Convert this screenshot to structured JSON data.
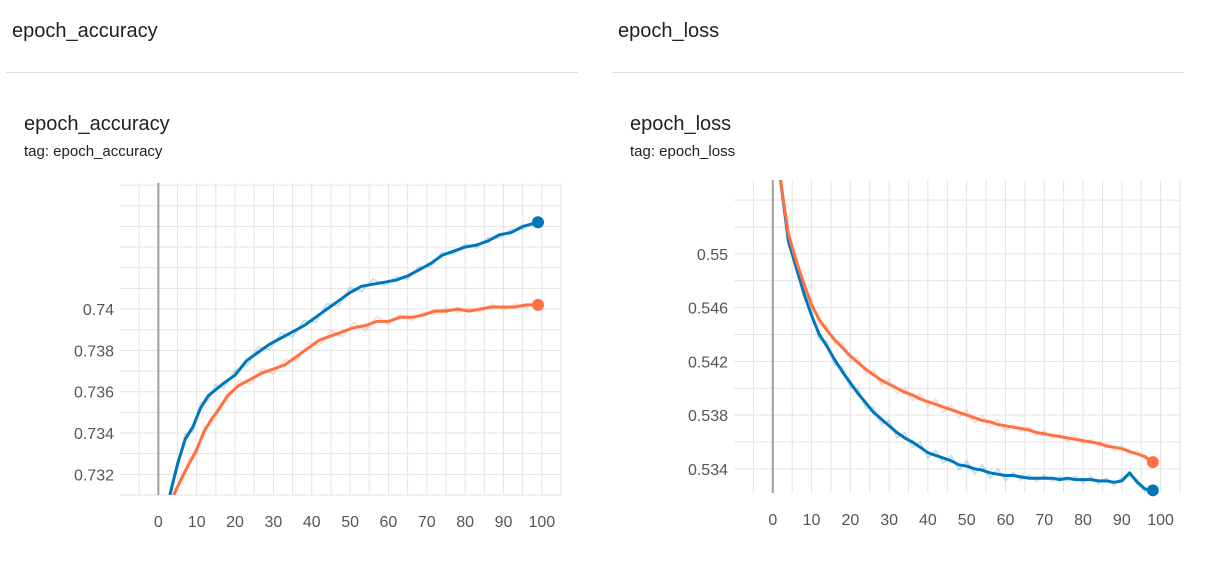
{
  "cards": [
    {
      "header_title": "epoch_accuracy",
      "chart_title": "epoch_accuracy",
      "chart_tag": "tag: epoch_accuracy"
    },
    {
      "header_title": "epoch_loss",
      "chart_title": "epoch_loss",
      "chart_tag": "tag: epoch_loss"
    }
  ],
  "colors": {
    "series_1": "#0077bb",
    "series_2": "#ff7043"
  },
  "chart_data": [
    {
      "type": "line",
      "title": "epoch_accuracy",
      "xlim": [
        -10,
        105
      ],
      "ylim": [
        0.731,
        0.7461
      ],
      "x_ticks": [
        0,
        10,
        20,
        30,
        40,
        50,
        60,
        70,
        80,
        90,
        100
      ],
      "y_ticks": [
        0.732,
        0.734,
        0.736,
        0.738,
        0.74
      ],
      "grid": true,
      "series": [
        {
          "color": "#0077bb",
          "x": [
            3,
            5,
            7,
            9,
            11,
            13,
            15,
            17,
            20,
            23,
            26,
            29,
            32,
            35,
            38,
            41,
            44,
            47,
            50,
            53,
            56,
            59,
            62,
            65,
            68,
            71,
            74,
            77,
            80,
            83,
            86,
            89,
            92,
            95,
            99
          ],
          "y": [
            0.731,
            0.7325,
            0.7337,
            0.7343,
            0.7352,
            0.7358,
            0.7361,
            0.7364,
            0.7368,
            0.7375,
            0.7379,
            0.7383,
            0.7386,
            0.7389,
            0.7392,
            0.7396,
            0.74,
            0.7404,
            0.7408,
            0.7411,
            0.7412,
            0.7413,
            0.7414,
            0.7416,
            0.7419,
            0.7422,
            0.7426,
            0.7428,
            0.743,
            0.7431,
            0.7433,
            0.7436,
            0.7437,
            0.744,
            0.7442
          ]
        },
        {
          "color": "#ff7043",
          "x": [
            4,
            6,
            8,
            10,
            12,
            14,
            16,
            18,
            21,
            24,
            27,
            30,
            33,
            36,
            39,
            42,
            45,
            48,
            51,
            54,
            57,
            60,
            63,
            66,
            69,
            72,
            75,
            78,
            81,
            84,
            87,
            90,
            93,
            96,
            99
          ],
          "y": [
            0.731,
            0.7318,
            0.7325,
            0.7332,
            0.7341,
            0.7347,
            0.7352,
            0.7358,
            0.7363,
            0.7366,
            0.7369,
            0.7371,
            0.7373,
            0.7377,
            0.7381,
            0.7385,
            0.7387,
            0.7389,
            0.7391,
            0.7392,
            0.7394,
            0.7394,
            0.7396,
            0.7396,
            0.7397,
            0.7399,
            0.7399,
            0.74,
            0.7399,
            0.74,
            0.7401,
            0.7401,
            0.7401,
            0.7402,
            0.7402
          ]
        }
      ]
    },
    {
      "type": "line",
      "title": "epoch_loss",
      "xlim": [
        -10,
        105
      ],
      "ylim": [
        0.5322,
        0.5555
      ],
      "x_ticks": [
        0,
        10,
        20,
        30,
        40,
        50,
        60,
        70,
        80,
        90,
        100
      ],
      "y_ticks": [
        0.534,
        0.538,
        0.542,
        0.546,
        0.55
      ],
      "grid": true,
      "series": [
        {
          "color": "#0077bb",
          "x": [
            2,
            4,
            6,
            8,
            10,
            12,
            14,
            16,
            18,
            20,
            22,
            24,
            26,
            28,
            30,
            32,
            34,
            36,
            38,
            40,
            42,
            44,
            46,
            48,
            50,
            52,
            54,
            56,
            58,
            60,
            62,
            64,
            66,
            68,
            70,
            72,
            74,
            76,
            78,
            80,
            82,
            84,
            86,
            88,
            90,
            92,
            94,
            96,
            98
          ],
          "y": [
            0.5555,
            0.551,
            0.549,
            0.5471,
            0.5454,
            0.544,
            0.5431,
            0.5421,
            0.5412,
            0.5404,
            0.5396,
            0.5389,
            0.5382,
            0.5377,
            0.5372,
            0.5367,
            0.5363,
            0.536,
            0.5356,
            0.5352,
            0.535,
            0.5348,
            0.5346,
            0.5343,
            0.5342,
            0.534,
            0.5339,
            0.5337,
            0.5336,
            0.5335,
            0.5335,
            0.5334,
            0.5333,
            0.5333,
            0.5333,
            0.5333,
            0.5332,
            0.5333,
            0.5332,
            0.5332,
            0.5332,
            0.5331,
            0.5331,
            0.533,
            0.5331,
            0.5337,
            0.533,
            0.5325,
            0.5324
          ]
        },
        {
          "color": "#ff7043",
          "x": [
            2,
            4,
            6,
            8,
            10,
            12,
            14,
            16,
            18,
            20,
            22,
            24,
            26,
            28,
            30,
            32,
            34,
            36,
            38,
            40,
            42,
            44,
            46,
            48,
            50,
            52,
            54,
            56,
            58,
            60,
            62,
            64,
            66,
            68,
            70,
            72,
            74,
            76,
            78,
            80,
            82,
            84,
            86,
            88,
            90,
            92,
            94,
            96,
            98
          ],
          "y": [
            0.5555,
            0.5515,
            0.5495,
            0.5478,
            0.5462,
            0.5451,
            0.5443,
            0.5436,
            0.543,
            0.5424,
            0.5419,
            0.5414,
            0.541,
            0.5406,
            0.5403,
            0.54,
            0.5397,
            0.5395,
            0.5392,
            0.539,
            0.5388,
            0.5386,
            0.5384,
            0.5382,
            0.538,
            0.5378,
            0.5376,
            0.5375,
            0.5373,
            0.5372,
            0.5371,
            0.537,
            0.5369,
            0.5367,
            0.5366,
            0.5365,
            0.5364,
            0.5363,
            0.5362,
            0.5361,
            0.536,
            0.5359,
            0.5357,
            0.5356,
            0.5355,
            0.5353,
            0.5351,
            0.5349,
            0.5345
          ]
        }
      ]
    }
  ]
}
